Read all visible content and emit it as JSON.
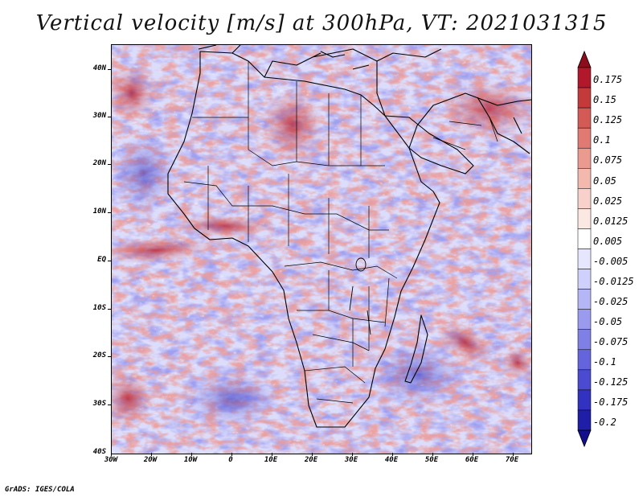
{
  "title": "Vertical velocity [m/s] at 300hPa, VT: 2021031315",
  "credit": "GrADS: IGES/COLA",
  "latitude_labels": [
    "40N",
    "30N",
    "20N",
    "10N",
    "EQ",
    "10S",
    "20S",
    "30S",
    "40S"
  ],
  "longitude_labels": [
    "30W",
    "20W",
    "10W",
    "0",
    "10E",
    "20E",
    "30E",
    "40E",
    "50E",
    "60E",
    "70E"
  ],
  "colorbar": {
    "labels": [
      "0.175",
      "0.15",
      "0.125",
      "0.1",
      "0.075",
      "0.05",
      "0.025",
      "0.0125",
      "0.005",
      "-0.005",
      "-0.0125",
      "-0.025",
      "-0.05",
      "-0.075",
      "-0.1",
      "-0.125",
      "-0.175",
      "-0.2"
    ],
    "colors": [
      "#b2182b",
      "#c43a3a",
      "#d45a55",
      "#e07a72",
      "#eb9a90",
      "#f3b8ae",
      "#f8d2ca",
      "#fce8e3",
      "#ffffff",
      "#e6e6ff",
      "#cfd0fb",
      "#b5b6f5",
      "#9a9bee",
      "#7f80e6",
      "#6465dc",
      "#4a4bd0",
      "#3232c0",
      "#1e1ea8"
    ],
    "min_color": "#120e8c",
    "max_color": "#8c0d1c"
  },
  "map": {
    "region": "Africa, Middle East and surrounding oceans",
    "lon_range": [
      -30,
      75
    ],
    "lat_range": [
      -40,
      45
    ],
    "base_color": "#e9e9ff",
    "coast_color": "#000000",
    "positive_color": "#d9534f",
    "negative_color": "#5a5ae0"
  }
}
